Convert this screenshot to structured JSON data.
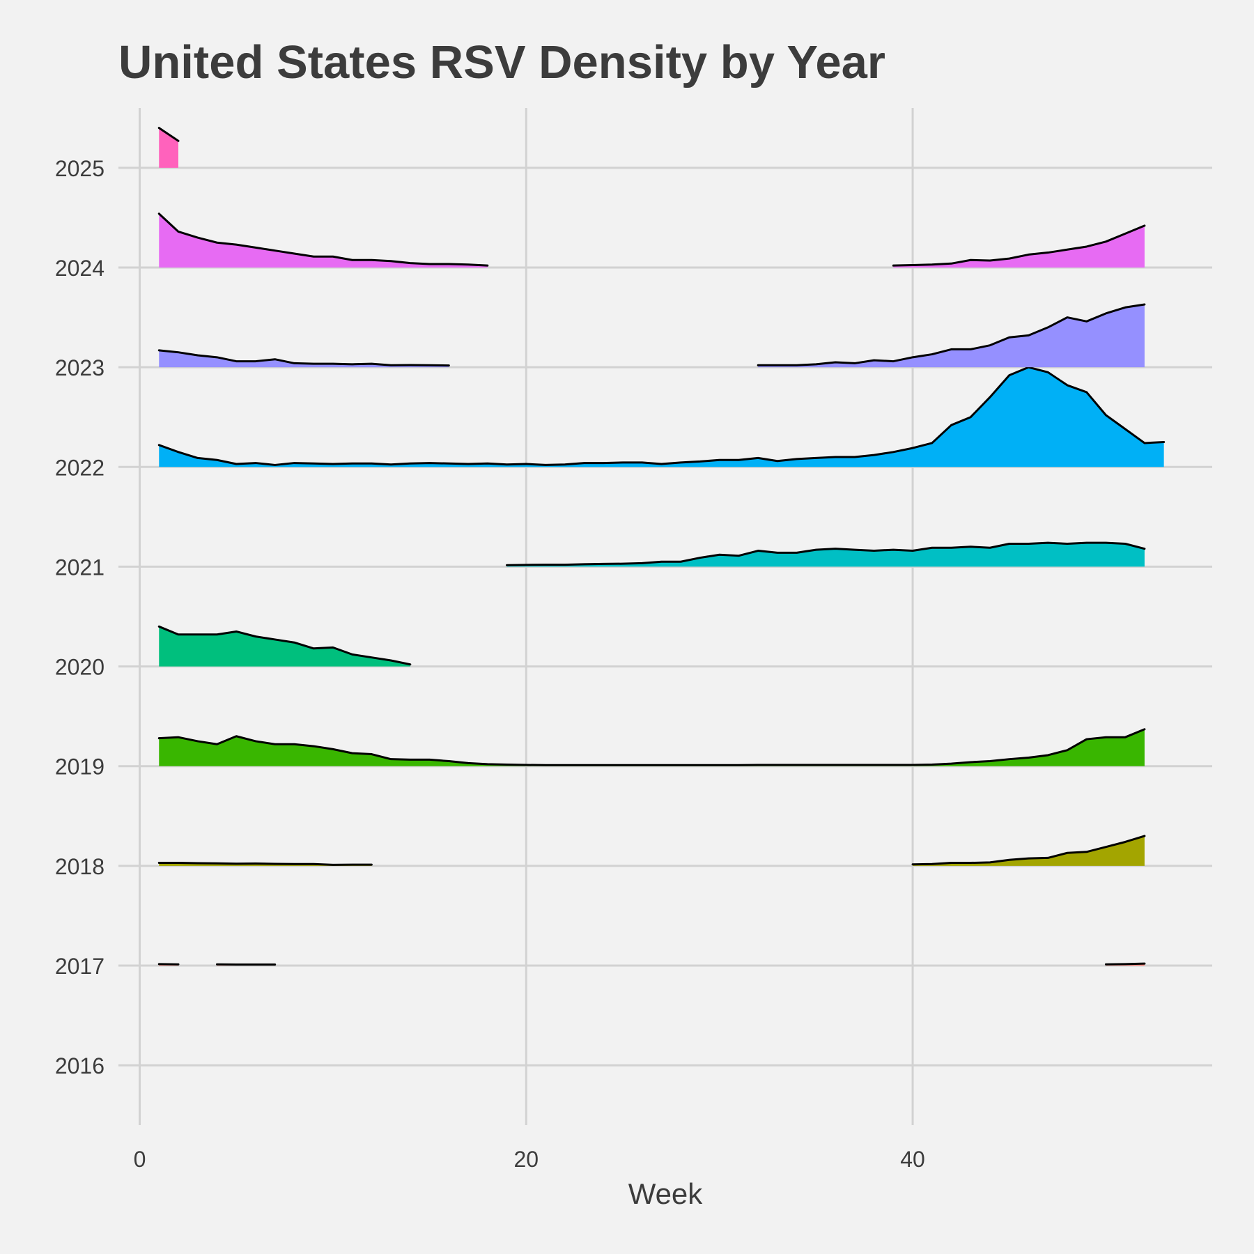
{
  "chart_data": {
    "type": "ridgeline",
    "title": "United States RSV Density by Year",
    "xlabel": "Week",
    "ylabel": "",
    "xlim": [
      -1.1,
      55.5
    ],
    "ylim": [
      2015.4,
      2025.6
    ],
    "x_ticks": [
      0,
      20,
      40
    ],
    "y_ticks": [
      2016,
      2017,
      2018,
      2019,
      2020,
      2021,
      2022,
      2023,
      2024,
      2025
    ],
    "x_tick_labels": [
      "0",
      "20",
      "40"
    ],
    "y_tick_labels": [
      "2016",
      "2017",
      "2018",
      "2019",
      "2020",
      "2021",
      "2022",
      "2023",
      "2024",
      "2025"
    ],
    "series": [
      {
        "name": "2017",
        "baseline": 2017,
        "color": "#f8766d",
        "segments": [
          {
            "x": [
              1,
              2
            ],
            "h": [
              0.015,
              0.012
            ]
          },
          {
            "x": [
              4,
              5,
              6,
              7
            ],
            "h": [
              0.012,
              0.01,
              0.01,
              0.01
            ]
          },
          {
            "x": [
              50,
              51,
              52
            ],
            "h": [
              0.012,
              0.015,
              0.02
            ]
          }
        ]
      },
      {
        "name": "2018",
        "baseline": 2018,
        "color": "#a3a500",
        "segments": [
          {
            "x": [
              1,
              2,
              3,
              4,
              5,
              6,
              7,
              8,
              9,
              10,
              11,
              12
            ],
            "h": [
              0.03,
              0.03,
              0.027,
              0.025,
              0.022,
              0.023,
              0.02,
              0.018,
              0.018,
              0.01,
              0.012,
              0.012
            ]
          },
          {
            "x": [
              40,
              41,
              42,
              43,
              44,
              45,
              46,
              47,
              48,
              49,
              50,
              51,
              52
            ],
            "h": [
              0.015,
              0.018,
              0.03,
              0.03,
              0.035,
              0.06,
              0.075,
              0.08,
              0.13,
              0.14,
              0.19,
              0.24,
              0.3
            ]
          }
        ]
      },
      {
        "name": "2019",
        "baseline": 2019,
        "color": "#39b600",
        "segments": [
          {
            "x": [
              1,
              2,
              3,
              4,
              5,
              6,
              7,
              8,
              9,
              10,
              11,
              12,
              13,
              14,
              15,
              16,
              17,
              18,
              19,
              20,
              21,
              22,
              23,
              24,
              25,
              26,
              27,
              28,
              29,
              30,
              31,
              32,
              33,
              34,
              35,
              36,
              37,
              38,
              39,
              40,
              41,
              42,
              43,
              44,
              45,
              46,
              47,
              48,
              49,
              50,
              51,
              52
            ],
            "h": [
              0.28,
              0.29,
              0.25,
              0.22,
              0.3,
              0.25,
              0.22,
              0.22,
              0.2,
              0.17,
              0.13,
              0.12,
              0.07,
              0.065,
              0.065,
              0.05,
              0.03,
              0.02,
              0.015,
              0.012,
              0.01,
              0.01,
              0.01,
              0.01,
              0.01,
              0.01,
              0.01,
              0.01,
              0.01,
              0.01,
              0.01,
              0.012,
              0.012,
              0.012,
              0.012,
              0.012,
              0.012,
              0.012,
              0.012,
              0.012,
              0.015,
              0.025,
              0.04,
              0.05,
              0.07,
              0.085,
              0.11,
              0.16,
              0.27,
              0.29,
              0.29,
              0.37
            ]
          }
        ]
      },
      {
        "name": "2020",
        "baseline": 2020,
        "color": "#00bf7d",
        "segments": [
          {
            "x": [
              1,
              2,
              3,
              4,
              5,
              6,
              7,
              8,
              9,
              10,
              11,
              12,
              13,
              14
            ],
            "h": [
              0.4,
              0.32,
              0.32,
              0.32,
              0.35,
              0.3,
              0.27,
              0.24,
              0.18,
              0.19,
              0.12,
              0.09,
              0.06,
              0.02
            ]
          }
        ]
      },
      {
        "name": "2021",
        "baseline": 2021,
        "color": "#00bfc4",
        "segments": [
          {
            "x": [
              19,
              20,
              21,
              22,
              23,
              24,
              25,
              26,
              27,
              28,
              29,
              30,
              31,
              32,
              33,
              34,
              35,
              36,
              37,
              38,
              39,
              40,
              41,
              42,
              43,
              44,
              45,
              46,
              47,
              48,
              49,
              50,
              51,
              52
            ],
            "h": [
              0.015,
              0.018,
              0.02,
              0.02,
              0.025,
              0.028,
              0.03,
              0.035,
              0.05,
              0.05,
              0.09,
              0.12,
              0.11,
              0.16,
              0.14,
              0.14,
              0.17,
              0.18,
              0.17,
              0.16,
              0.17,
              0.16,
              0.19,
              0.19,
              0.2,
              0.19,
              0.23,
              0.23,
              0.24,
              0.23,
              0.24,
              0.24,
              0.23,
              0.18
            ]
          }
        ]
      },
      {
        "name": "2022",
        "baseline": 2022,
        "color": "#00b0f6",
        "segments": [
          {
            "x": [
              1,
              2,
              3,
              4,
              5,
              6,
              7,
              8,
              9,
              10,
              11,
              12,
              13,
              14,
              15,
              16,
              17,
              18,
              19,
              20,
              21,
              22,
              23,
              24,
              25,
              26,
              27,
              28,
              29,
              30,
              31,
              32,
              33,
              34,
              35,
              36,
              37,
              38,
              39,
              40,
              41,
              42,
              43,
              44,
              45,
              46,
              47,
              48,
              49,
              50,
              51,
              52,
              53
            ],
            "h": [
              0.22,
              0.15,
              0.09,
              0.07,
              0.03,
              0.04,
              0.02,
              0.04,
              0.035,
              0.03,
              0.035,
              0.035,
              0.025,
              0.035,
              0.04,
              0.035,
              0.03,
              0.035,
              0.025,
              0.03,
              0.02,
              0.025,
              0.04,
              0.04,
              0.045,
              0.045,
              0.03,
              0.045,
              0.055,
              0.07,
              0.07,
              0.09,
              0.06,
              0.08,
              0.09,
              0.1,
              0.1,
              0.12,
              0.15,
              0.19,
              0.24,
              0.42,
              0.5,
              0.7,
              0.92,
              1.0,
              0.95,
              0.82,
              0.75,
              0.52,
              0.38,
              0.24,
              0.25
            ]
          }
        ]
      },
      {
        "name": "2023",
        "baseline": 2023,
        "color": "#9590ff",
        "segments": [
          {
            "x": [
              1,
              2,
              3,
              4,
              5,
              6,
              7,
              8,
              9,
              10,
              11,
              12,
              13,
              14,
              15,
              16
            ],
            "h": [
              0.17,
              0.15,
              0.12,
              0.1,
              0.06,
              0.06,
              0.08,
              0.04,
              0.035,
              0.035,
              0.03,
              0.035,
              0.02,
              0.022,
              0.02,
              0.018
            ]
          },
          {
            "x": [
              32,
              33,
              34,
              35,
              36,
              37,
              38,
              39,
              40,
              41,
              42,
              43,
              44,
              45,
              46,
              47,
              48,
              49,
              50,
              51,
              52
            ],
            "h": [
              0.02,
              0.02,
              0.02,
              0.03,
              0.05,
              0.04,
              0.07,
              0.06,
              0.1,
              0.13,
              0.18,
              0.18,
              0.22,
              0.3,
              0.32,
              0.4,
              0.5,
              0.46,
              0.54,
              0.6,
              0.63
            ]
          }
        ]
      },
      {
        "name": "2024",
        "baseline": 2024,
        "color": "#e76bf3",
        "segments": [
          {
            "x": [
              1,
              2,
              3,
              4,
              5,
              6,
              7,
              8,
              9,
              10,
              11,
              12,
              13,
              14,
              15,
              16,
              17,
              18
            ],
            "h": [
              0.54,
              0.36,
              0.3,
              0.25,
              0.23,
              0.2,
              0.17,
              0.14,
              0.11,
              0.11,
              0.075,
              0.075,
              0.065,
              0.045,
              0.035,
              0.035,
              0.03,
              0.02
            ]
          },
          {
            "x": [
              39,
              40,
              41,
              42,
              43,
              44,
              45,
              46,
              47,
              48,
              49,
              50,
              51,
              52
            ],
            "h": [
              0.02,
              0.025,
              0.03,
              0.04,
              0.075,
              0.07,
              0.09,
              0.13,
              0.15,
              0.18,
              0.21,
              0.26,
              0.34,
              0.42
            ]
          }
        ]
      },
      {
        "name": "2025",
        "baseline": 2025,
        "color": "#ff62bc",
        "segments": [
          {
            "x": [
              1,
              2
            ],
            "h": [
              0.4,
              0.27
            ]
          }
        ]
      }
    ]
  }
}
